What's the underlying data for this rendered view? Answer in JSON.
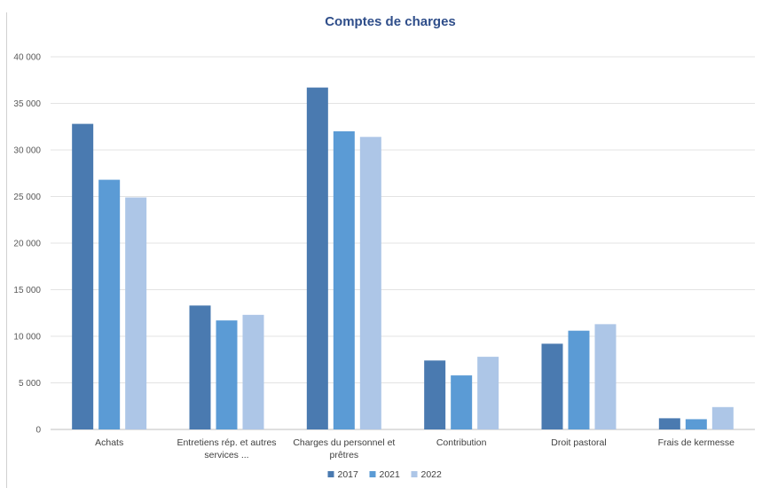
{
  "chart_data": {
    "type": "bar",
    "title": "Comptes de charges",
    "xlabel": "",
    "ylabel": "",
    "ylim": [
      0,
      40000
    ],
    "yticks": [
      0,
      5000,
      10000,
      15000,
      20000,
      25000,
      30000,
      35000,
      40000
    ],
    "ytick_labels": [
      "0",
      "5 000",
      "10 000",
      "15 000",
      "20 000",
      "25 000",
      "30 000",
      "35 000",
      "40 000"
    ],
    "categories": [
      [
        "Achats"
      ],
      [
        "Entretiens rép. et autres",
        "services ..."
      ],
      [
        "Charges du personnel et",
        "prêtres"
      ],
      [
        "Contribution"
      ],
      [
        "Droit pastoral"
      ],
      [
        "Frais de kermesse"
      ]
    ],
    "series": [
      {
        "name": "2017",
        "color": "#4a7ab0",
        "values": [
          32800,
          13300,
          36700,
          7400,
          9200,
          1200
        ]
      },
      {
        "name": "2021",
        "color": "#5b9bd5",
        "values": [
          26800,
          11700,
          32000,
          5800,
          10600,
          1100
        ]
      },
      {
        "name": "2022",
        "color": "#adc6e7",
        "values": [
          24900,
          12300,
          31400,
          7800,
          11300,
          2400
        ]
      }
    ],
    "grid": true,
    "legend_position": "bottom"
  }
}
